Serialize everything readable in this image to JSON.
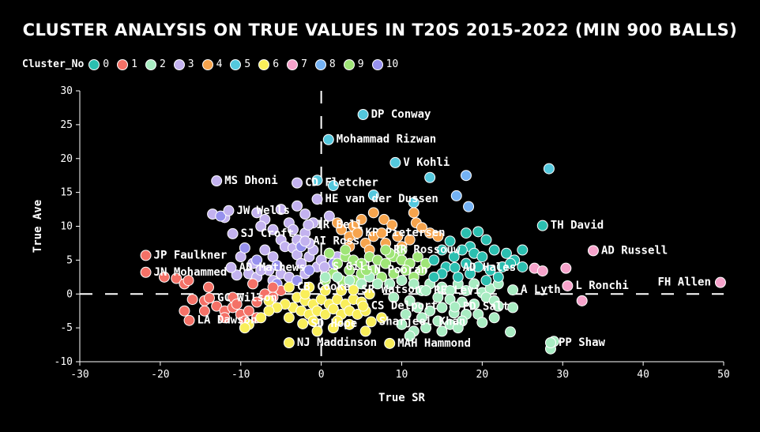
{
  "chart_data": {
    "type": "scatter",
    "title": "CLUSTER ANALYSIS ON TRUE VALUES IN T20S 2015-2022 (MIN 900 BALLS)",
    "xlabel": "True SR",
    "ylabel": "True Ave",
    "xlim": [
      -30,
      50
    ],
    "ylim": [
      -10,
      30
    ],
    "xticks": [
      -30,
      -20,
      -10,
      0,
      10,
      20,
      30,
      40,
      50
    ],
    "yticks": [
      -10,
      -5,
      0,
      5,
      10,
      15,
      20,
      25,
      30
    ],
    "reference_lines": {
      "x": 0,
      "y": 0,
      "style": "dashed"
    },
    "legend": {
      "title": "Cluster_No",
      "entries": [
        {
          "label": "0",
          "color": "#2bbfb0"
        },
        {
          "label": "1",
          "color": "#f47167"
        },
        {
          "label": "2",
          "color": "#a8ecc2"
        },
        {
          "label": "3",
          "color": "#c3b2ef"
        },
        {
          "label": "4",
          "color": "#f6a44d"
        },
        {
          "label": "5",
          "color": "#54c8dd"
        },
        {
          "label": "6",
          "color": "#f9ee5a"
        },
        {
          "label": "7",
          "color": "#f6a3cb"
        },
        {
          "label": "8",
          "color": "#74b2f4"
        },
        {
          "label": "9",
          "color": "#9fe577"
        },
        {
          "label": "10",
          "color": "#9791ee"
        }
      ]
    },
    "labeled_points": [
      {
        "name": "DP Conway",
        "x": 5.2,
        "y": 26.5,
        "cluster": 5
      },
      {
        "name": "Mohammad Rizwan",
        "x": 0.9,
        "y": 22.8,
        "cluster": 5
      },
      {
        "name": "V Kohli",
        "x": 9.2,
        "y": 19.4,
        "cluster": 5
      },
      {
        "name": "MS Dhoni",
        "x": -13.0,
        "y": 16.7,
        "cluster": 3
      },
      {
        "name": "CD Fletcher",
        "x": -3.0,
        "y": 16.4,
        "cluster": 3
      },
      {
        "name": "HE van der Dussen",
        "x": -0.5,
        "y": 14.0,
        "cluster": 3
      },
      {
        "name": "JW Wells",
        "x": -11.5,
        "y": 12.3,
        "cluster": 3
      },
      {
        "name": "IR Bell",
        "x": -1.6,
        "y": 10.2,
        "cluster": 3
      },
      {
        "name": "KP Pietersen",
        "x": 4.5,
        "y": 9.0,
        "cluster": 4
      },
      {
        "name": "SJ Croft",
        "x": -11.0,
        "y": 8.9,
        "cluster": 3
      },
      {
        "name": "AI Ross",
        "x": -2.0,
        "y": 7.8,
        "cluster": 3
      },
      {
        "name": "TH David",
        "x": 27.5,
        "y": 10.1,
        "cluster": 0
      },
      {
        "name": "AD Russell",
        "x": 33.8,
        "y": 6.4,
        "cluster": 7
      },
      {
        "name": "RR Rossouw",
        "x": 8.0,
        "y": 6.5,
        "cluster": 9
      },
      {
        "name": "JP Faulkner",
        "x": -21.8,
        "y": 5.7,
        "cluster": 1
      },
      {
        "name": "AD Mathews",
        "x": -11.2,
        "y": 3.9,
        "cluster": 3
      },
      {
        "name": "S Gill",
        "x": 0.4,
        "y": 4.0,
        "cluster": 3
      },
      {
        "name": "N Pooran",
        "x": 5.6,
        "y": 3.5,
        "cluster": 9
      },
      {
        "name": "AD Hales",
        "x": 16.6,
        "y": 3.9,
        "cluster": 0
      },
      {
        "name": "JN Mohammed",
        "x": -21.8,
        "y": 3.2,
        "cluster": 1
      },
      {
        "name": "L Ronchi",
        "x": 30.6,
        "y": 1.2,
        "cluster": 7
      },
      {
        "name": "FH Allen",
        "x": 49.6,
        "y": 1.7,
        "cluster": 7
      },
      {
        "name": "A Lyth",
        "x": 23.8,
        "y": 0.6,
        "cluster": 2
      },
      {
        "name": "CB Cooke",
        "x": -4.0,
        "y": 1.0,
        "cluster": 6
      },
      {
        "name": "SR Watson",
        "x": 4.0,
        "y": 0.6,
        "cluster": 6
      },
      {
        "name": "RE Levi",
        "x": 13.0,
        "y": 0.5,
        "cluster": 2
      },
      {
        "name": "GC Wilson",
        "x": -13.9,
        "y": -0.6,
        "cluster": 1
      },
      {
        "name": "CS Delport",
        "x": 5.2,
        "y": -1.8,
        "cluster": 6
      },
      {
        "name": "PD Salt",
        "x": 16.6,
        "y": -1.9,
        "cluster": 2
      },
      {
        "name": "LA Dawson",
        "x": -16.4,
        "y": -3.9,
        "cluster": 1
      },
      {
        "name": "SD Hope",
        "x": -2.3,
        "y": -4.4,
        "cluster": 6
      },
      {
        "name": "Sharjeel Khan",
        "x": 6.2,
        "y": -4.1,
        "cluster": 6
      },
      {
        "name": "NJ Maddinson",
        "x": -4.0,
        "y": -7.2,
        "cluster": 6
      },
      {
        "name": "MAH Hammond",
        "x": 8.5,
        "y": -7.3,
        "cluster": 6
      },
      {
        "name": "PP Shaw",
        "x": 28.5,
        "y": -7.2,
        "cluster": 2
      }
    ],
    "unlabeled_points": [
      [
        28.3,
        18.5,
        5
      ],
      [
        18.0,
        17.5,
        8
      ],
      [
        13.5,
        17.2,
        5
      ],
      [
        16.8,
        14.5,
        8
      ],
      [
        18.3,
        12.9,
        8
      ],
      [
        6.5,
        14.6,
        5
      ],
      [
        11.5,
        13.5,
        5
      ],
      [
        1.5,
        16.0,
        5
      ],
      [
        -0.5,
        16.8,
        5
      ],
      [
        -13.5,
        11.8,
        3
      ],
      [
        -12.0,
        11.3,
        3
      ],
      [
        -8.0,
        12.0,
        3
      ],
      [
        -7.0,
        11.0,
        3
      ],
      [
        -5.0,
        12.5,
        3
      ],
      [
        -3.0,
        13.0,
        3
      ],
      [
        -2.0,
        11.8,
        3
      ],
      [
        -4.0,
        10.5,
        3
      ],
      [
        -6.0,
        9.5,
        3
      ],
      [
        -7.5,
        10.0,
        3
      ],
      [
        -3.5,
        9.5,
        3
      ],
      [
        -5.0,
        8.0,
        3
      ],
      [
        -4.5,
        7.0,
        3
      ],
      [
        -3.5,
        6.8,
        3
      ],
      [
        -3.0,
        5.8,
        3
      ],
      [
        -6.0,
        5.5,
        3
      ],
      [
        -7.0,
        6.5,
        3
      ],
      [
        -8.5,
        4.5,
        3
      ],
      [
        -10.0,
        5.5,
        3
      ],
      [
        -9.0,
        3.0,
        3
      ],
      [
        -8.0,
        2.5,
        3
      ],
      [
        -6.5,
        3.5,
        3
      ],
      [
        -5.0,
        3.0,
        3
      ],
      [
        -4.0,
        2.5,
        3
      ],
      [
        -2.5,
        4.5,
        3
      ],
      [
        -2.0,
        3.0,
        3
      ],
      [
        -1.5,
        5.5,
        3
      ],
      [
        -1.0,
        6.5,
        3
      ],
      [
        -0.5,
        4.0,
        3
      ],
      [
        0.0,
        5.0,
        3
      ],
      [
        1.0,
        6.0,
        3
      ],
      [
        2.0,
        5.5,
        3
      ],
      [
        -1.5,
        7.5,
        3
      ],
      [
        -3.0,
        8.0,
        3
      ],
      [
        -2.0,
        9.0,
        3
      ],
      [
        -1.0,
        10.5,
        3
      ],
      [
        1.0,
        11.5,
        3
      ],
      [
        -6.0,
        2.0,
        3
      ],
      [
        -7.5,
        3.5,
        3
      ],
      [
        -10.5,
        2.8,
        3
      ],
      [
        -12.5,
        11.5,
        10
      ],
      [
        -9.5,
        6.8,
        10
      ],
      [
        -3.0,
        2.0,
        10
      ],
      [
        -1.5,
        3.5,
        10
      ],
      [
        -5.5,
        1.5,
        10
      ],
      [
        1.5,
        4.5,
        10
      ],
      [
        -2.5,
        7.0,
        10
      ],
      [
        -8.0,
        5.0,
        10
      ],
      [
        -5.5,
        4.2,
        10
      ],
      [
        0.5,
        2.5,
        10
      ],
      [
        6.5,
        12.0,
        4
      ],
      [
        11.5,
        12.0,
        4
      ],
      [
        11.8,
        10.5,
        4
      ],
      [
        7.8,
        11.0,
        4
      ],
      [
        8.8,
        10.2,
        4
      ],
      [
        12.5,
        9.8,
        4
      ],
      [
        4.5,
        9.2,
        4
      ],
      [
        6.5,
        8.5,
        4
      ],
      [
        7.5,
        9.0,
        4
      ],
      [
        9.5,
        8.5,
        4
      ],
      [
        11.0,
        8.0,
        4
      ],
      [
        13.5,
        9.0,
        4
      ],
      [
        14.5,
        8.5,
        4
      ],
      [
        10.0,
        7.0,
        4
      ],
      [
        5.5,
        7.5,
        4
      ],
      [
        3.5,
        8.5,
        4
      ],
      [
        2.5,
        9.5,
        4
      ],
      [
        2.0,
        10.5,
        4
      ],
      [
        4.0,
        10.0,
        4
      ],
      [
        8.0,
        7.5,
        4
      ],
      [
        6.0,
        6.5,
        4
      ],
      [
        3.5,
        7.0,
        4
      ],
      [
        5.0,
        11.0,
        4
      ],
      [
        3.0,
        5.5,
        9
      ],
      [
        4.0,
        5.0,
        9
      ],
      [
        5.0,
        4.5,
        9
      ],
      [
        6.0,
        5.5,
        9
      ],
      [
        7.0,
        5.0,
        9
      ],
      [
        8.0,
        4.5,
        9
      ],
      [
        9.0,
        5.5,
        9
      ],
      [
        10.0,
        5.0,
        9
      ],
      [
        11.0,
        4.5,
        9
      ],
      [
        12.0,
        5.5,
        9
      ],
      [
        2.0,
        4.5,
        9
      ],
      [
        3.5,
        3.5,
        9
      ],
      [
        5.0,
        3.0,
        9
      ],
      [
        6.5,
        3.5,
        9
      ],
      [
        7.5,
        2.5,
        9
      ],
      [
        9.0,
        3.0,
        9
      ],
      [
        10.5,
        3.5,
        9
      ],
      [
        11.5,
        2.5,
        9
      ],
      [
        12.5,
        3.5,
        9
      ],
      [
        1.5,
        3.0,
        9
      ],
      [
        2.5,
        2.0,
        9
      ],
      [
        4.0,
        2.0,
        9
      ],
      [
        1.0,
        6.0,
        9
      ],
      [
        3.0,
        6.5,
        9
      ],
      [
        10.0,
        6.5,
        9
      ],
      [
        13.0,
        4.5,
        9
      ],
      [
        0.5,
        2.0,
        9
      ],
      [
        8.5,
        6.0,
        9
      ],
      [
        0.5,
        2.5,
        2
      ],
      [
        2.0,
        2.5,
        2
      ],
      [
        3.5,
        2.0,
        2
      ],
      [
        5.0,
        1.5,
        2
      ],
      [
        6.0,
        2.5,
        2
      ],
      [
        7.0,
        1.5,
        2
      ],
      [
        8.5,
        1.5,
        2
      ],
      [
        10.0,
        2.0,
        2
      ],
      [
        11.5,
        1.5,
        2
      ],
      [
        12.5,
        0.5,
        2
      ],
      [
        13.5,
        1.5,
        2
      ],
      [
        15.0,
        1.0,
        2
      ],
      [
        16.0,
        0.5,
        2
      ],
      [
        17.0,
        1.5,
        2
      ],
      [
        18.0,
        0.5,
        2
      ],
      [
        19.0,
        1.5,
        2
      ],
      [
        20.0,
        0.2,
        2
      ],
      [
        21.0,
        0.8,
        2
      ],
      [
        22.0,
        1.5,
        2
      ],
      [
        14.5,
        -0.5,
        2
      ],
      [
        16.0,
        -0.8,
        2
      ],
      [
        17.5,
        -1.2,
        2
      ],
      [
        19.0,
        -1.5,
        2
      ],
      [
        20.5,
        -0.5,
        2
      ],
      [
        21.5,
        -1.0,
        2
      ],
      [
        11.0,
        -1.0,
        2
      ],
      [
        12.0,
        -2.0,
        2
      ],
      [
        13.5,
        -2.5,
        2
      ],
      [
        15.0,
        -2.0,
        2
      ],
      [
        16.5,
        -2.8,
        2
      ],
      [
        18.0,
        -3.0,
        2
      ],
      [
        10.5,
        -3.0,
        2
      ],
      [
        12.5,
        -3.5,
        2
      ],
      [
        14.5,
        -4.0,
        2
      ],
      [
        16.0,
        -4.5,
        2
      ],
      [
        17.5,
        -4.0,
        2
      ],
      [
        19.5,
        -3.0,
        2
      ],
      [
        20.0,
        -4.2,
        2
      ],
      [
        21.5,
        -3.5,
        2
      ],
      [
        10.0,
        -4.5,
        2
      ],
      [
        11.5,
        -5.5,
        2
      ],
      [
        13.0,
        -5.0,
        2
      ],
      [
        15.0,
        -5.5,
        2
      ],
      [
        17.0,
        -5.0,
        2
      ],
      [
        23.5,
        -5.6,
        2
      ],
      [
        28.9,
        -7.0,
        2
      ],
      [
        9.0,
        -0.5,
        2
      ],
      [
        23.8,
        -2.0,
        2
      ],
      [
        22.0,
        -1.8,
        2
      ],
      [
        28.5,
        -8.1,
        2
      ],
      [
        11.0,
        -6.2,
        2
      ],
      [
        20.5,
        8.0,
        0
      ],
      [
        19.5,
        9.2,
        0
      ],
      [
        18.5,
        7.0,
        0
      ],
      [
        17.5,
        6.5,
        0
      ],
      [
        19.0,
        6.0,
        0
      ],
      [
        20.0,
        5.5,
        0
      ],
      [
        21.5,
        6.5,
        0
      ],
      [
        23.0,
        6.0,
        0
      ],
      [
        24.0,
        5.0,
        0
      ],
      [
        25.0,
        6.5,
        0
      ],
      [
        15.0,
        6.5,
        0
      ],
      [
        16.5,
        5.5,
        0
      ],
      [
        14.0,
        5.0,
        0
      ],
      [
        15.5,
        4.0,
        0
      ],
      [
        18.0,
        4.5,
        0
      ],
      [
        19.5,
        4.0,
        0
      ],
      [
        21.0,
        3.5,
        0
      ],
      [
        22.0,
        2.5,
        0
      ],
      [
        20.5,
        2.0,
        0
      ],
      [
        18.5,
        3.0,
        0
      ],
      [
        17.0,
        2.5,
        0
      ],
      [
        15.0,
        3.0,
        0
      ],
      [
        14.0,
        2.5,
        0
      ],
      [
        25.0,
        4.0,
        0
      ],
      [
        22.5,
        4.0,
        0
      ],
      [
        18.0,
        9.0,
        0
      ],
      [
        16.0,
        7.8,
        0
      ],
      [
        23.5,
        4.5,
        0
      ],
      [
        -19.5,
        2.5,
        1
      ],
      [
        -18.0,
        2.3,
        1
      ],
      [
        -17.0,
        1.5,
        1
      ],
      [
        -16.0,
        -0.8,
        1
      ],
      [
        -14.5,
        -1.0,
        1
      ],
      [
        -13.0,
        -1.8,
        1
      ],
      [
        -12.0,
        -2.5,
        1
      ],
      [
        -11.0,
        -2.0,
        1
      ],
      [
        -10.0,
        -3.0,
        1
      ],
      [
        -9.0,
        -2.5,
        1
      ],
      [
        -8.5,
        1.5,
        1
      ],
      [
        -8.0,
        -1.2,
        1
      ],
      [
        -7.0,
        0.0,
        1
      ],
      [
        -6.0,
        -0.5,
        1
      ],
      [
        -5.0,
        0.5,
        1
      ],
      [
        -9.5,
        -4.0,
        1
      ],
      [
        -12.0,
        -3.5,
        1
      ],
      [
        -14.5,
        -2.5,
        1
      ],
      [
        -8.0,
        -3.5,
        1
      ],
      [
        -6.0,
        1.0,
        1
      ],
      [
        -17.0,
        -2.5,
        1
      ],
      [
        -11.0,
        -0.5,
        1
      ],
      [
        -14.0,
        1.0,
        1
      ],
      [
        -10.5,
        -1.5,
        1
      ],
      [
        -16.5,
        2.0,
        1
      ],
      [
        -3.0,
        -0.5,
        6
      ],
      [
        -2.0,
        -1.0,
        6
      ],
      [
        -1.0,
        -1.5,
        6
      ],
      [
        0.0,
        -0.8,
        6
      ],
      [
        1.0,
        -1.5,
        6
      ],
      [
        2.0,
        -0.8,
        6
      ],
      [
        3.0,
        -1.5,
        6
      ],
      [
        4.0,
        -0.8,
        6
      ],
      [
        5.0,
        -1.2,
        6
      ],
      [
        6.0,
        0.0,
        6
      ],
      [
        -3.5,
        -2.0,
        6
      ],
      [
        -2.5,
        -2.5,
        6
      ],
      [
        -1.5,
        -3.0,
        6
      ],
      [
        -0.5,
        -2.5,
        6
      ],
      [
        0.5,
        -3.0,
        6
      ],
      [
        1.5,
        -2.2,
        6
      ],
      [
        2.5,
        -3.0,
        6
      ],
      [
        3.5,
        -2.5,
        6
      ],
      [
        4.5,
        -3.0,
        6
      ],
      [
        5.5,
        -2.5,
        6
      ],
      [
        -4.5,
        -1.5,
        6
      ],
      [
        -5.5,
        -2.0,
        6
      ],
      [
        -6.5,
        -2.5,
        6
      ],
      [
        -7.5,
        -3.5,
        6
      ],
      [
        -9.0,
        -4.5,
        6
      ],
      [
        -4.0,
        -3.5,
        6
      ],
      [
        -1.0,
        -4.0,
        6
      ],
      [
        2.0,
        -4.0,
        6
      ],
      [
        3.5,
        -4.5,
        6
      ],
      [
        7.5,
        -3.5,
        6
      ],
      [
        -0.5,
        -5.5,
        6
      ],
      [
        1.5,
        -5.0,
        6
      ],
      [
        -1.5,
        1.0,
        6
      ],
      [
        0.5,
        0.5,
        6
      ],
      [
        -2.0,
        0.0,
        6
      ],
      [
        2.5,
        0.5,
        6
      ],
      [
        -6.5,
        -1.0,
        6
      ],
      [
        5.5,
        -5.5,
        6
      ],
      [
        -9.5,
        -5.0,
        6
      ],
      [
        26.5,
        3.8,
        7
      ],
      [
        27.5,
        3.4,
        7
      ],
      [
        32.4,
        -1.0,
        7
      ],
      [
        30.4,
        3.8,
        7
      ]
    ]
  }
}
